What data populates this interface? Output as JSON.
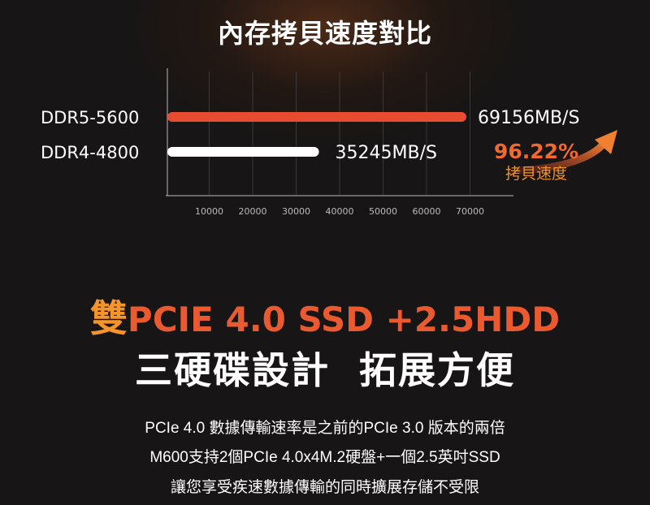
{
  "title": "內存拷貝速度對比",
  "chart_data": {
    "type": "bar",
    "orientation": "horizontal",
    "title": "內存拷貝速度對比",
    "categories": [
      "DDR5-5600",
      "DDR4-4800"
    ],
    "values": [
      69156,
      35245
    ],
    "value_labels": [
      "69156MB/S",
      "35245MB/S"
    ],
    "bar_colors": [
      "#e84c30",
      "#ffffff"
    ],
    "xticks": [
      "10000",
      "20000",
      "30000",
      "40000",
      "50000",
      "60000",
      "70000"
    ],
    "xlim": [
      0,
      80000
    ],
    "grid": true,
    "annotation": {
      "value": "96.22%",
      "label": "拷貝速度",
      "color": "#f06a30"
    }
  },
  "headline": {
    "prefix": "雙",
    "text": "PCIE 4.0 SSD +2.5HDD"
  },
  "subheadline": "三硬碟設計  拓展方便",
  "body_lines": [
    "PCIe 4.0 數據傳輸速率是之前的PCIe 3.0 版本的兩倍",
    "M600支持2個PCIe 4.0x4M.2硬盤+一個2.5英吋SSD",
    "讓您享受疾速數據傳輸的同時擴展存儲不受限"
  ]
}
